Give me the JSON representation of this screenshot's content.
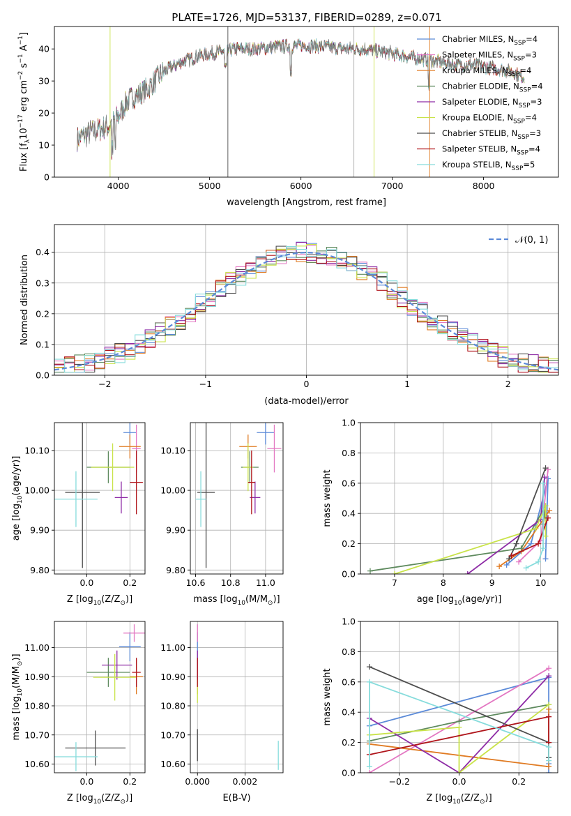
{
  "figure": {
    "title": "PLATE=1726, MJD=53137, FIBERID=0289, z=0.071"
  },
  "models": [
    {
      "name": "Chabrier MILES",
      "nssp": "4",
      "color": "#5b8ad8"
    },
    {
      "name": "Salpeter MILES",
      "nssp": "3",
      "color": "#e377c2"
    },
    {
      "name": "Kroupa MILES",
      "nssp": "4",
      "color": "#e07b23"
    },
    {
      "name": "Chabrier ELODIE",
      "nssp": "4",
      "color": "#5e8a5e"
    },
    {
      "name": "Salpeter ELODIE",
      "nssp": "3",
      "color": "#8e2ca6"
    },
    {
      "name": "Kroupa ELODIE",
      "nssp": "4",
      "color": "#c9e349"
    },
    {
      "name": "Chabrier STELIB",
      "nssp": "3",
      "color": "#4d4d4d"
    },
    {
      "name": "Salpeter STELIB",
      "nssp": "4",
      "color": "#b0161c"
    },
    {
      "name": "Kroupa STELIB",
      "nssp": "5",
      "color": "#86dcdc"
    }
  ],
  "chart_data": [
    {
      "id": "spectrum",
      "type": "line",
      "xlabel": "wavelength [Angstrom, rest frame]",
      "ylabel_main": "Flux [f",
      "ylabel_sub": "λ",
      "ylabel_rest": "10",
      "ylabel_exp": "−17",
      "ylabel_tail": " erg cm",
      "ylabel_exp2": "−2",
      "ylabel_tail2": " s",
      "ylabel_exp3": "−1",
      "ylabel_tail3": " A",
      "ylabel_exp4": "−1",
      "ylabel_end": "]",
      "xlim": [
        3300,
        8820
      ],
      "ylim": [
        0,
        47
      ],
      "xticks": [
        4000,
        5000,
        6000,
        7000,
        8000
      ],
      "yticks": [
        0,
        10,
        20,
        30,
        40
      ],
      "grid": false,
      "legend_position": "upper right",
      "continuum_x": [
        3550,
        3700,
        3900,
        4000,
        4100,
        4300,
        4500,
        4700,
        4900,
        5100,
        5300,
        5500,
        5700,
        5900,
        6100,
        6300,
        6500,
        6700,
        6900,
        7100,
        7300,
        7500,
        7700,
        7900,
        8100,
        8300,
        8450
      ],
      "continuum_y": [
        12,
        14,
        16,
        19,
        24,
        27,
        33,
        36,
        38,
        39,
        40,
        40,
        40.5,
        41,
        41,
        40.5,
        40,
        40,
        39,
        38,
        37,
        36,
        35,
        35,
        34,
        33,
        31
      ]
    },
    {
      "id": "residuals",
      "type": "bar",
      "xlabel": "(data-model)/error",
      "ylabel": "Normed distribution",
      "xlim": [
        -2.5,
        2.5
      ],
      "ylim": [
        0,
        0.49
      ],
      "xticks": [
        -2,
        -1,
        0,
        1,
        2
      ],
      "yticks": [
        0.0,
        0.1,
        0.2,
        0.3,
        0.4
      ],
      "grid": true,
      "legend_position": "upper right",
      "legend_label": "𝒩(0, 1)",
      "curve": "normal(0,1)",
      "curve_color": "#5b8ad8"
    },
    {
      "id": "age_vs_Z",
      "type": "scatter",
      "xlabel": "Z [log",
      "xlabel_sub": "10",
      "xlabel_tail": "(Z/Z",
      "xlabel_sun": "⊙",
      "xlabel_end": ")]",
      "ylabel": "age  [log",
      "ylabel_sub": "10",
      "ylabel_tail": "(age/yr)]",
      "xlim": [
        -0.15,
        0.27
      ],
      "ylim": [
        9.79,
        10.17
      ],
      "xticks": [
        0.0,
        0.2
      ],
      "yticks": [
        9.8,
        9.9,
        10.0,
        10.1
      ],
      "grid": true,
      "points": [
        {
          "x": 0.2,
          "y": 10.145,
          "xerr": 0.03,
          "yerr": 0.03
        },
        {
          "x": 0.23,
          "y": 10.105,
          "xerr": 0.02,
          "yerr": 0.06
        },
        {
          "x": 0.2,
          "y": 10.11,
          "xerr": 0.05,
          "yerr": 0.03
        },
        {
          "x": 0.1,
          "y": 10.058,
          "xerr": 0.1,
          "yerr": 0.04
        },
        {
          "x": 0.16,
          "y": 9.982,
          "xerr": 0.03,
          "yerr": 0.04
        },
        {
          "x": 0.12,
          "y": 10.058,
          "xerr": 0.1,
          "yerr": 0.06
        },
        {
          "x": -0.02,
          "y": 9.995,
          "xerr": 0.08,
          "yerr": 0.19
        },
        {
          "x": 0.23,
          "y": 10.02,
          "xerr": 0.03,
          "yerr": 0.08
        },
        {
          "x": -0.05,
          "y": 9.978,
          "xerr": 0.1,
          "yerr": 0.07
        }
      ]
    },
    {
      "id": "age_vs_mass",
      "type": "scatter",
      "xlabel": "mass [log",
      "xlabel_sub": "10",
      "xlabel_tail": "(M/M",
      "xlabel_sun": "⊙",
      "xlabel_end": ")]",
      "xlim": [
        10.57,
        11.1
      ],
      "ylim": [
        9.79,
        10.17
      ],
      "xticks": [
        10.6,
        10.8,
        11.0
      ],
      "yticks": [
        9.8,
        9.9,
        10.0,
        10.1
      ],
      "grid": true,
      "points": [
        {
          "x": 11.0,
          "y": 10.145,
          "xerr": 0.05,
          "yerr": 0.03
        },
        {
          "x": 11.05,
          "y": 10.105,
          "xerr": 0.04,
          "yerr": 0.06
        },
        {
          "x": 10.9,
          "y": 10.11,
          "xerr": 0.05,
          "yerr": 0.03
        },
        {
          "x": 10.91,
          "y": 10.058,
          "xerr": 0.05,
          "yerr": 0.04
        },
        {
          "x": 10.94,
          "y": 9.982,
          "xerr": 0.03,
          "yerr": 0.04
        },
        {
          "x": 10.9,
          "y": 10.058,
          "xerr": 0.03,
          "yerr": 0.06
        },
        {
          "x": 10.66,
          "y": 9.995,
          "xerr": 0.05,
          "yerr": 0.19
        },
        {
          "x": 10.92,
          "y": 10.02,
          "xerr": 0.02,
          "yerr": 0.08
        },
        {
          "x": 10.63,
          "y": 9.978,
          "xerr": 0.03,
          "yerr": 0.07
        }
      ]
    },
    {
      "id": "weight_vs_age",
      "type": "line",
      "xlabel": "age  [log",
      "xlabel_sub": "10",
      "xlabel_tail": "(age/yr)]",
      "ylabel": "mass weight",
      "xlim": [
        6.3,
        10.35
      ],
      "ylim": [
        0,
        1.0
      ],
      "xticks": [
        7,
        8,
        9,
        10
      ],
      "yticks": [
        0.0,
        0.2,
        0.4,
        0.6,
        0.8,
        1.0
      ],
      "grid": true,
      "series": [
        {
          "x": [
            9.3,
            9.8,
            10.15,
            10.1
          ],
          "y": [
            0.06,
            0.2,
            0.63,
            0.1
          ]
        },
        {
          "x": [
            9.55,
            10.0,
            10.15
          ],
          "y": [
            0.08,
            0.22,
            0.69
          ]
        },
        {
          "x": [
            9.15,
            9.6,
            10.18
          ],
          "y": [
            0.05,
            0.15,
            0.42
          ]
        },
        {
          "x": [
            6.5,
            9.6,
            10.1,
            10.05
          ],
          "y": [
            0.02,
            0.17,
            0.45,
            0.33
          ]
        },
        {
          "x": [
            8.5,
            10.0,
            10.08
          ],
          "y": [
            0.0,
            0.36,
            0.64
          ]
        },
        {
          "x": [
            7.0,
            9.9,
            10.1,
            10.1
          ],
          "y": [
            0.0,
            0.3,
            0.45,
            0.25
          ]
        },
        {
          "x": [
            9.35,
            9.5,
            10.1
          ],
          "y": [
            0.1,
            0.2,
            0.7
          ]
        },
        {
          "x": [
            9.4,
            9.95,
            10.15
          ],
          "y": [
            0.12,
            0.2,
            0.37
          ]
        },
        {
          "x": [
            9.7,
            9.95,
            10.05,
            10.05
          ],
          "y": [
            0.04,
            0.08,
            0.17,
            0.6
          ]
        }
      ]
    },
    {
      "id": "mass_vs_Z",
      "type": "scatter",
      "xlabel": "Z [log",
      "xlabel_sub": "10",
      "xlabel_tail": "(Z/Z",
      "xlabel_sun": "⊙",
      "xlabel_end": ")]",
      "ylabel": "mass [log",
      "ylabel_sub": "10",
      "ylabel_tail": "(M/M",
      "ylabel_sun": "⊙",
      "ylabel_end": ")]",
      "xlim": [
        -0.15,
        0.27
      ],
      "ylim": [
        10.57,
        11.09
      ],
      "xticks": [
        0.0,
        0.2
      ],
      "yticks": [
        10.6,
        10.7,
        10.8,
        10.9,
        11.0
      ],
      "grid": true,
      "points": [
        {
          "x": 0.2,
          "y": 11.003,
          "xerr": 0.05,
          "yerr": 0.05
        },
        {
          "x": 0.22,
          "y": 11.05,
          "xerr": 0.05,
          "yerr": 0.03
        },
        {
          "x": 0.23,
          "y": 10.9,
          "xerr": 0.03,
          "yerr": 0.06
        },
        {
          "x": 0.1,
          "y": 10.915,
          "xerr": 0.1,
          "yerr": 0.05
        },
        {
          "x": 0.14,
          "y": 10.94,
          "xerr": 0.07,
          "yerr": 0.05
        },
        {
          "x": 0.13,
          "y": 10.898,
          "xerr": 0.1,
          "yerr": 0.08
        },
        {
          "x": 0.04,
          "y": 10.655,
          "xerr": 0.14,
          "yerr": 0.06
        },
        {
          "x": 0.23,
          "y": 10.915,
          "xerr": 0.02,
          "yerr": 0.05
        },
        {
          "x": -0.05,
          "y": 10.625,
          "xerr": 0.1,
          "yerr": 0.05
        }
      ]
    },
    {
      "id": "mass_vs_ebv",
      "type": "scatter",
      "xlabel": "E(B-V)",
      "xlim": [
        -0.0003,
        0.0036
      ],
      "ylim": [
        10.57,
        11.09
      ],
      "xticks": [
        0.0,
        0.002
      ],
      "yticks": [
        10.6,
        10.7,
        10.8,
        10.9,
        11.0
      ],
      "grid": true,
      "points": [
        {
          "x": 0.0,
          "y": 11.003,
          "xerr": 0.0,
          "yerr": 0.05
        },
        {
          "x": 0.0,
          "y": 11.05,
          "xerr": 0.0,
          "yerr": 0.03
        },
        {
          "x": 0.0,
          "y": 10.9,
          "xerr": 0.0,
          "yerr": 0.06
        },
        {
          "x": 0.0,
          "y": 10.915,
          "xerr": 0.0,
          "yerr": 0.05
        },
        {
          "x": 0.0,
          "y": 10.94,
          "xerr": 0.0,
          "yerr": 0.05
        },
        {
          "x": 0.0,
          "y": 10.85,
          "xerr": 0.0,
          "yerr": 0.04
        },
        {
          "x": 0.0,
          "y": 10.665,
          "xerr": 0.0,
          "yerr": 0.055
        },
        {
          "x": 0.0,
          "y": 10.915,
          "xerr": 0.0,
          "yerr": 0.05
        },
        {
          "x": 0.0034,
          "y": 10.63,
          "xerr": 0.0,
          "yerr": 0.05
        }
      ]
    },
    {
      "id": "weight_vs_Z",
      "type": "line",
      "xlabel": "Z [log",
      "xlabel_sub": "10",
      "xlabel_tail": "(Z/Z",
      "xlabel_sun": "⊙",
      "xlabel_end": ")]",
      "ylabel": "mass weight",
      "xlim": [
        -0.33,
        0.33
      ],
      "ylim": [
        0,
        1.0
      ],
      "xticks": [
        -0.2,
        0.0,
        0.2
      ],
      "yticks": [
        0.0,
        0.2,
        0.4,
        0.6,
        0.8,
        1.0
      ],
      "grid": true,
      "series": [
        {
          "x": [
            -0.3,
            0.3,
            0.3,
            0.3
          ],
          "y": [
            0.31,
            0.63,
            0.06,
            0.0
          ]
        },
        {
          "x": [
            -0.3,
            0.3
          ],
          "y": [
            0.0,
            0.69
          ]
        },
        {
          "x": [
            -0.3,
            0.3,
            0.3
          ],
          "y": [
            0.19,
            0.04,
            0.42
          ]
        },
        {
          "x": [
            -0.3,
            0.0,
            0.3
          ],
          "y": [
            0.21,
            0.34,
            0.45
          ]
        },
        {
          "x": [
            -0.3,
            0.0,
            0.3
          ],
          "y": [
            0.36,
            0.0,
            0.64
          ]
        },
        {
          "x": [
            -0.3,
            0.0,
            0.0,
            0.3
          ],
          "y": [
            0.25,
            0.3,
            0.0,
            0.45
          ]
        },
        {
          "x": [
            -0.3,
            0.3,
            0.3
          ],
          "y": [
            0.7,
            0.2,
            0.1
          ]
        },
        {
          "x": [
            -0.3,
            0.3,
            0.3
          ],
          "y": [
            0.12,
            0.37,
            0.2
          ]
        },
        {
          "x": [
            -0.3,
            -0.3,
            0.3,
            0.3
          ],
          "y": [
            0.04,
            0.6,
            0.17,
            0.08
          ]
        }
      ]
    }
  ]
}
